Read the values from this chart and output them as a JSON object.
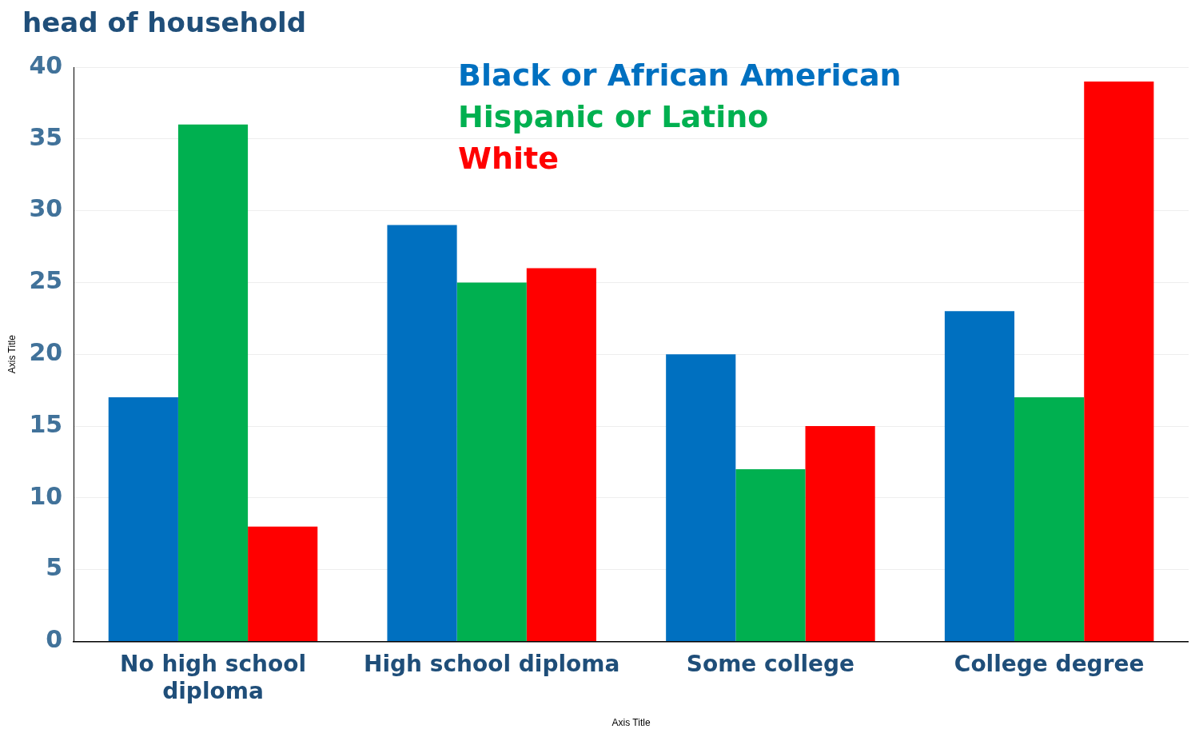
{
  "chart_data": {
    "type": "bar",
    "title": "head of household",
    "xlabel": "Axis Title",
    "ylabel": "Axis Title",
    "categories": [
      "No high school diploma",
      "High school diploma",
      "Some college",
      "College degree"
    ],
    "series": [
      {
        "name": "Black or African American",
        "color": "#0070c0",
        "values": [
          17,
          29,
          20,
          23
        ]
      },
      {
        "name": "Hispanic or Latino",
        "color": "#00b050",
        "values": [
          36,
          25,
          12,
          17
        ]
      },
      {
        "name": "White",
        "color": "#ff0000",
        "values": [
          8,
          26,
          15,
          39
        ]
      }
    ],
    "ylim": [
      0,
      40
    ],
    "yticks": [
      0,
      5,
      10,
      15,
      20,
      25,
      30,
      35,
      40
    ],
    "grid": "y",
    "legend": "top"
  }
}
